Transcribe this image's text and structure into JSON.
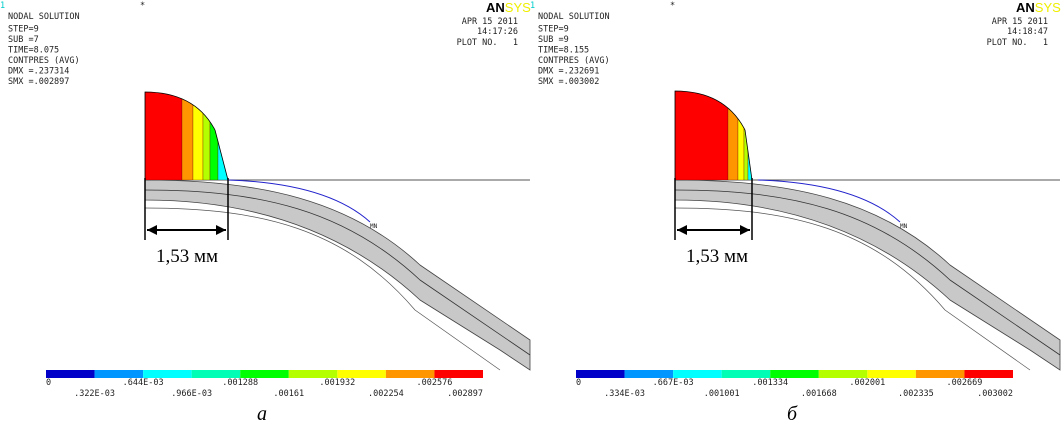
{
  "legend_colors": [
    "#0000c8",
    "#0096ff",
    "#00ffff",
    "#00ffb4",
    "#00ff00",
    "#b4ff00",
    "#ffff00",
    "#ff9600",
    "#ff0000"
  ],
  "panels": [
    {
      "index": "1",
      "star": "*",
      "header": [
        "NODAL SOLUTION",
        "STEP=9",
        "SUB =7",
        "TIME=8.075",
        "CONTPRES (AVG)",
        "DMX =.237314",
        "SMX =.002897"
      ],
      "logo": {
        "left": "AN",
        "right": "SYS"
      },
      "date": "APR 15 2011",
      "time": "14:17:26",
      "plot": "PLOT NO.   1",
      "marker": "MN",
      "legend_labels": [
        "0",
        ".322E-03",
        ".644E-03",
        ".966E-03",
        ".001288",
        ".00161",
        ".001932",
        ".002254",
        ".002576",
        ".002897"
      ],
      "dimension": "1,53 мм",
      "caption": "а"
    },
    {
      "index": "1",
      "star": "*",
      "header": [
        "NODAL SOLUTION",
        "STEP=9",
        "SUB =9",
        "TIME=8.155",
        "CONTPRES (AVG)",
        "DMX =.232691",
        "SMX =.003002"
      ],
      "logo": {
        "left": "AN",
        "right": "SYS"
      },
      "date": "APR 15 2011",
      "time": "14:18:47",
      "plot": "PLOT NO.   1",
      "marker": "MN",
      "legend_labels": [
        "0",
        ".334E-03",
        ".667E-03",
        ".001001",
        ".001334",
        ".001668",
        ".002001",
        ".002335",
        ".002669",
        ".003002"
      ],
      "dimension": "1,53 мм",
      "caption": "б"
    }
  ]
}
